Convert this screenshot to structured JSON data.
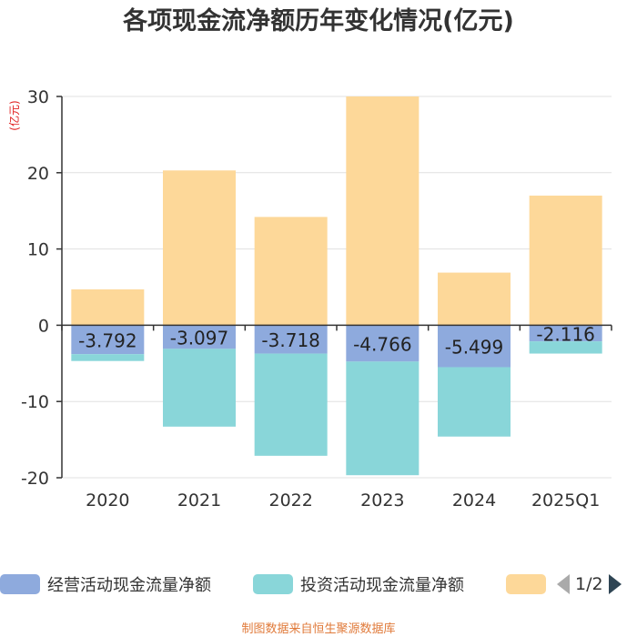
{
  "chart_data": {
    "type": "bar",
    "stacked": true,
    "title": "各项现金流净额历年变化情况(亿元)",
    "ylabel": "(亿元)",
    "ylim": [
      -20,
      30
    ],
    "yticks": [
      -20,
      -10,
      0,
      10,
      20,
      30
    ],
    "grid": true,
    "categories": [
      "2020",
      "2021",
      "2022",
      "2023",
      "2024",
      "2025Q1"
    ],
    "series": [
      {
        "name": "经营活动现金流量净额",
        "color": "#8eaadd",
        "values": [
          -3.792,
          -3.097,
          -3.718,
          -4.766,
          -5.499,
          -2.116
        ],
        "labels": [
          "-3.792",
          "-3.097",
          "-3.718",
          "-4.766",
          "-5.499",
          "-2.116"
        ]
      },
      {
        "name": "投资活动现金流量净额",
        "color": "#89d6d9",
        "values": [
          -0.9,
          -10.2,
          -13.4,
          -14.9,
          -9.1,
          -1.6
        ]
      },
      {
        "name": "",
        "color": "#fdd899",
        "values": [
          4.7,
          20.3,
          14.2,
          30.0,
          6.9,
          17.0
        ]
      }
    ],
    "legend_position": "bottom"
  },
  "legend": {
    "items": [
      {
        "label": "经营活动现金流量净额",
        "color": "#8eaadd"
      },
      {
        "label": "投资活动现金流量净额",
        "color": "#89d6d9"
      },
      {
        "label": "",
        "color": "#fdd899"
      }
    ],
    "page": "1/2"
  },
  "source": "制图数据来自恒生聚源数据库"
}
